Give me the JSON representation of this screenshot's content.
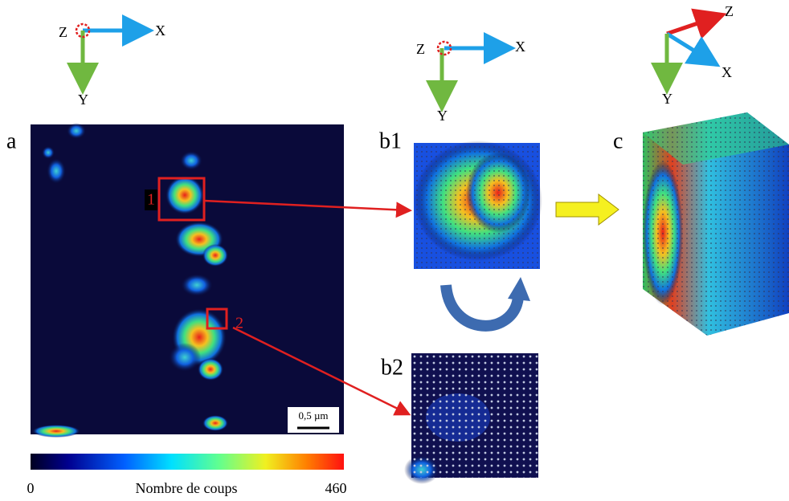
{
  "axes_a": {
    "z": "Z",
    "x": "X",
    "y": "Y"
  },
  "axes_b": {
    "z": "Z",
    "x": "X",
    "y": "Y"
  },
  "axes_c": {
    "z": "Z",
    "x": "X",
    "y": "Y"
  },
  "panels": {
    "a": "a",
    "b1": "b1",
    "b2": "b2",
    "c": "c"
  },
  "regions": [
    "1",
    "2"
  ],
  "scale_bar": "0,5 µm",
  "colorbar": {
    "min": 0,
    "max": 460,
    "label": "Nombre de coups"
  }
}
